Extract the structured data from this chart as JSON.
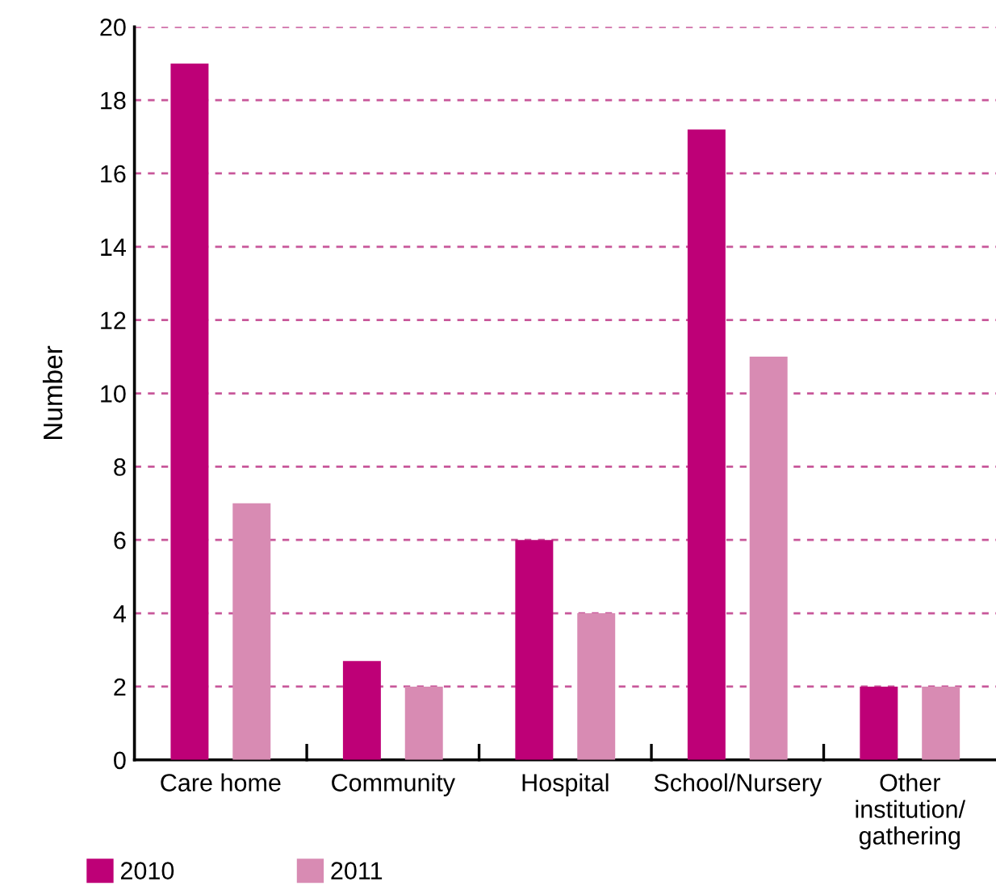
{
  "chart_data": {
    "type": "bar",
    "ylabel": "Number",
    "categories": [
      "Care home",
      "Community",
      "Hospital",
      "School/Nursery",
      "Other\ninstitution/\ngathering"
    ],
    "series": [
      {
        "name": "2010",
        "color": "#be0077",
        "values": [
          19,
          2.7,
          6,
          17.2,
          2
        ]
      },
      {
        "name": "2011",
        "color": "#d88bb3",
        "values": [
          7,
          2,
          4,
          11,
          2
        ]
      }
    ],
    "ylim": [
      0,
      20
    ],
    "yticks": [
      0,
      2,
      4,
      6,
      8,
      10,
      12,
      14,
      16,
      18,
      20
    ],
    "grid": "y",
    "legend": "bottom left"
  }
}
